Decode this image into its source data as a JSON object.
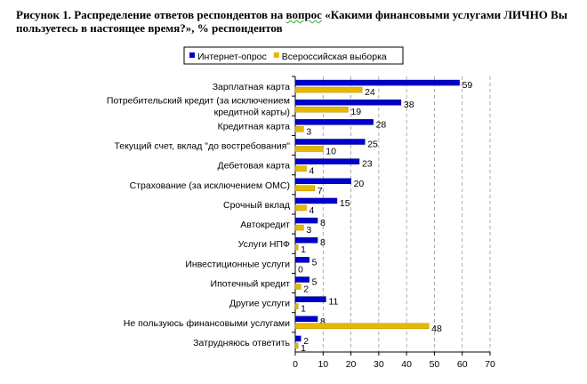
{
  "title_parts": {
    "before": "Рисунок 1. Распределение ответов респондентов на ",
    "underlined": "вопрос",
    "after": " «Какими финансовыми услугами ЛИЧНО Вы пользуетесь в настоящее время?», % респондентов"
  },
  "chart_data": {
    "type": "bar",
    "orientation": "horizontal",
    "title": "Рисунок 1. Распределение ответов респондентов на вопрос «Какими финансовыми услугами ЛИЧНО Вы пользуетесь в настоящее время?», % респондентов",
    "categories": [
      "Зарплатная карта",
      "Потребительский кредит (за исключением|кредитной карты)",
      "Кредитная карта",
      "Текущий счет, вклад \"до востребования\"",
      "Дебетовая карта",
      "Страхование (за исключением ОМС)",
      "Срочный вклад",
      "Автокредит",
      "Услуги НПФ",
      "Инвестиционные услуги",
      "Ипотечный кредит",
      "Другие услуги",
      "Не пользуюсь финансовыми услугами",
      "Затрудняюсь ответить"
    ],
    "series": [
      {
        "name": "Интернет-опрос",
        "color": "#0000CC",
        "values": [
          59,
          38,
          28,
          25,
          23,
          20,
          15,
          8,
          8,
          5,
          5,
          11,
          8,
          2
        ]
      },
      {
        "name": "Всероссийская выборка",
        "color": "#E6B800",
        "values": [
          24,
          19,
          3,
          10,
          4,
          7,
          4,
          3,
          1,
          0,
          2,
          1,
          48,
          1
        ]
      }
    ],
    "xlim": [
      0,
      70
    ],
    "xticks": [
      0,
      10,
      20,
      30,
      40,
      50,
      60,
      70
    ],
    "grid": "vertical dashed",
    "legend_placement": "top-center"
  }
}
